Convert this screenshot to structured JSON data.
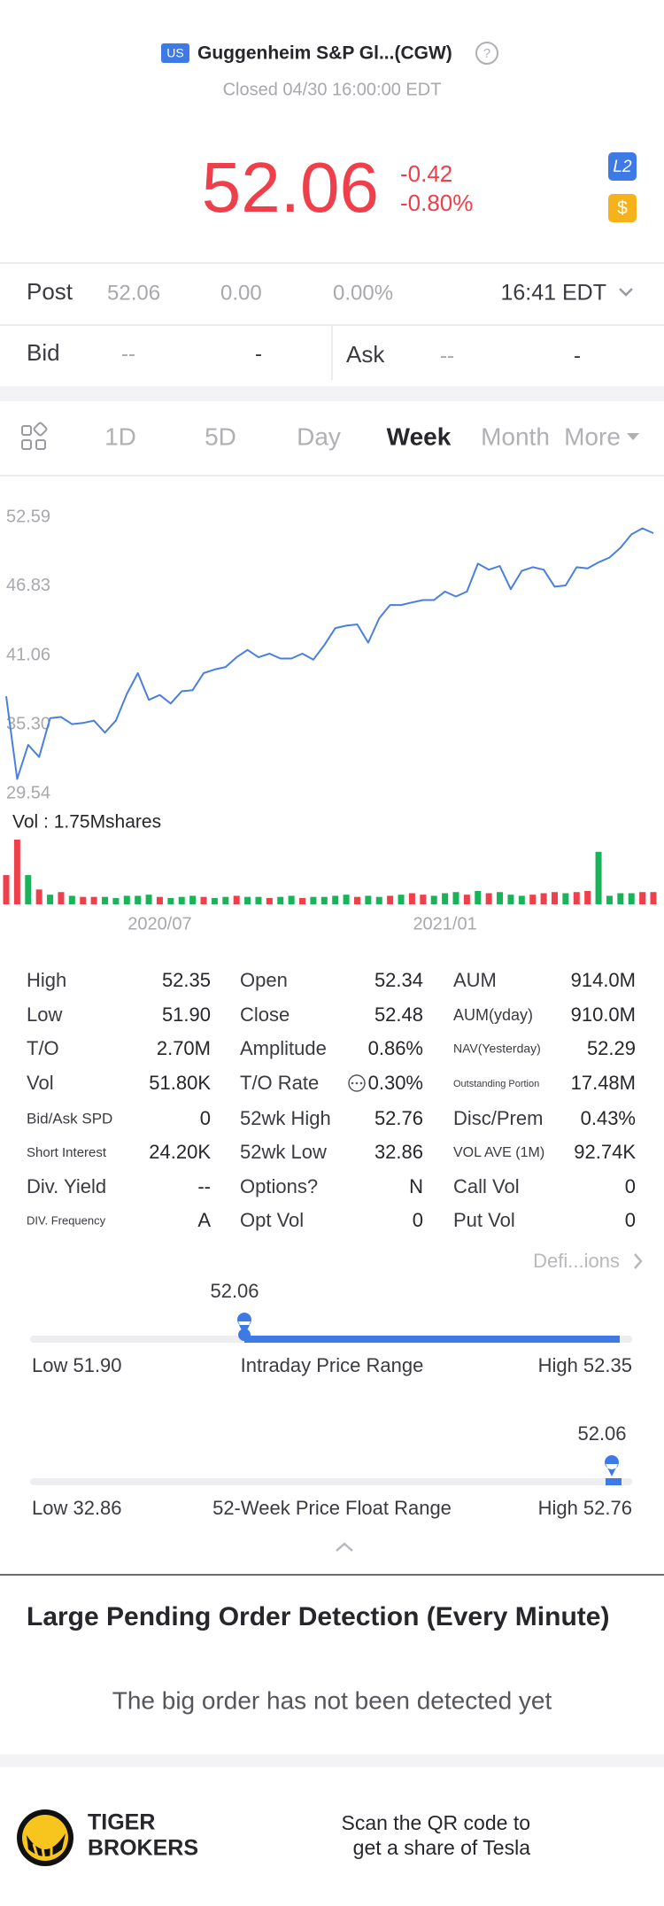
{
  "header": {
    "market": "US",
    "name": "Guggenheim S&P Gl...(CGW)",
    "status": "Closed 04/30 16:00:00 EDT"
  },
  "quote": {
    "price": "52.06",
    "change": "-0.42",
    "change_pct": "-0.80%",
    "level_badge": "L2",
    "currency_badge": "$"
  },
  "post": {
    "label": "Post",
    "price": "52.06",
    "change": "0.00",
    "change_pct": "0.00%",
    "time": "16:41 EDT"
  },
  "bid": {
    "label": "Bid",
    "price": "--",
    "size": "-"
  },
  "ask": {
    "label": "Ask",
    "price": "--",
    "size": "-"
  },
  "tabs": {
    "items": [
      "1D",
      "5D",
      "Day",
      "Week",
      "Month",
      "More"
    ],
    "active": 3
  },
  "chart_data": {
    "type": "line",
    "color": "#4a7fe0",
    "categories": [
      null,
      null,
      null,
      null,
      null,
      null,
      null,
      null,
      null,
      null,
      null,
      null,
      null,
      null,
      "2020/07",
      null,
      null,
      null,
      null,
      null,
      null,
      null,
      null,
      null,
      null,
      null,
      null,
      null,
      null,
      null,
      null,
      null,
      null,
      null,
      null,
      null,
      null,
      null,
      null,
      null,
      "2021/01",
      null,
      null,
      null,
      null,
      null,
      null,
      null,
      null,
      null,
      null,
      null,
      null,
      null,
      null,
      null,
      null,
      null,
      null,
      null
    ],
    "values": [
      37.66,
      30.76,
      33.6,
      32.59,
      35.83,
      35.93,
      35.33,
      35.43,
      35.63,
      34.62,
      35.63,
      37.86,
      39.59,
      37.36,
      37.76,
      37.05,
      38.07,
      38.17,
      39.59,
      39.89,
      40.1,
      40.91,
      41.52,
      40.91,
      41.21,
      40.81,
      40.81,
      41.21,
      40.71,
      41.92,
      43.34,
      43.55,
      43.65,
      42.13,
      44.16,
      45.27,
      45.27,
      45.48,
      45.68,
      45.68,
      46.39,
      45.98,
      46.39,
      48.72,
      48.22,
      48.52,
      46.59,
      48.11,
      48.42,
      48.22,
      46.8,
      46.9,
      48.42,
      48.32,
      48.83,
      49.23,
      50.04,
      51.16,
      51.67,
      51.26
    ],
    "ylim": [
      29.54,
      52.59
    ],
    "yticks": [
      52.59,
      46.83,
      41.06,
      {
        "value": 35.3,
        "label": "35.30"
      },
      29.54
    ],
    "volume": {
      "label": "Vol : 1.75Mshares",
      "ylim": [
        0,
        1.75
      ],
      "values": [
        0.79,
        1.75,
        0.79,
        0.4,
        0.26,
        0.33,
        0.23,
        0.2,
        0.2,
        0.2,
        0.17,
        0.23,
        0.23,
        0.26,
        0.2,
        0.17,
        0.2,
        0.23,
        0.2,
        0.17,
        0.2,
        0.23,
        0.2,
        0.2,
        0.17,
        0.2,
        0.23,
        0.17,
        0.2,
        0.2,
        0.23,
        0.26,
        0.2,
        0.23,
        0.2,
        0.23,
        0.26,
        0.3,
        0.26,
        0.23,
        0.3,
        0.33,
        0.26,
        0.36,
        0.3,
        0.33,
        0.26,
        0.23,
        0.26,
        0.3,
        0.33,
        0.3,
        0.33,
        0.36,
        1.42,
        0.23,
        0.3,
        0.3,
        0.33,
        0.33
      ],
      "colors": [
        "#ef3f4a",
        "#ef3f4a",
        "#19b35a",
        "#ef3f4a",
        "#19b35a",
        "#ef3f4a",
        "#19b35a",
        "#ef3f4a",
        "#ef3f4a",
        "#19b35a",
        "#19b35a",
        "#19b35a",
        "#19b35a",
        "#19b35a",
        "#ef3f4a",
        "#19b35a",
        "#19b35a",
        "#19b35a",
        "#ef3f4a",
        "#19b35a",
        "#19b35a",
        "#ef3f4a",
        "#19b35a",
        "#19b35a",
        "#ef3f4a",
        "#19b35a",
        "#19b35a",
        "#ef3f4a",
        "#19b35a",
        "#19b35a",
        "#19b35a",
        "#19b35a",
        "#ef3f4a",
        "#19b35a",
        "#19b35a",
        "#ef3f4a",
        "#19b35a",
        "#ef3f4a",
        "#ef3f4a",
        "#19b35a",
        "#19b35a",
        "#19b35a",
        "#ef3f4a",
        "#19b35a",
        "#ef3f4a",
        "#19b35a",
        "#19b35a",
        "#19b35a",
        "#ef3f4a",
        "#ef3f4a",
        "#ef3f4a",
        "#19b35a",
        "#ef3f4a",
        "#ef3f4a",
        "#19b35a",
        "#19b35a",
        "#19b35a",
        "#19b35a",
        "#ef3f4a",
        "#ef3f4a"
      ]
    }
  },
  "stats": {
    "rows": [
      [
        [
          "High",
          "52.35"
        ],
        [
          "Open",
          "52.34"
        ],
        [
          "AUM",
          "914.0M"
        ]
      ],
      [
        [
          "Low",
          "51.90"
        ],
        [
          "Close",
          "52.48"
        ],
        [
          "AUM(yday)",
          "910.0M"
        ]
      ],
      [
        [
          "T/O",
          "2.70M"
        ],
        [
          "Amplitude",
          "0.86%"
        ],
        [
          "NAV(Yesterday)",
          "52.29"
        ]
      ],
      [
        [
          "Vol",
          "51.80K"
        ],
        [
          "T/O Rate",
          "0.30%"
        ],
        [
          "Outstanding Portion",
          "17.48M"
        ]
      ],
      [
        [
          "Bid/Ask SPD",
          "0"
        ],
        [
          "52wk High",
          "52.76"
        ],
        [
          "Disc/Prem",
          "0.43%"
        ]
      ],
      [
        [
          "Short Interest",
          "24.20K"
        ],
        [
          "52wk Low",
          "32.86"
        ],
        [
          "VOL AVE (1M)",
          "92.74K"
        ]
      ],
      [
        [
          "Div. Yield",
          "--"
        ],
        [
          "Options?",
          "N"
        ],
        [
          "Call Vol",
          "0"
        ]
      ],
      [
        [
          "DIV. Frequency",
          "A"
        ],
        [
          "Opt Vol",
          "0"
        ],
        [
          "Put Vol",
          "0"
        ]
      ]
    ]
  },
  "definitions": "Defi...ions",
  "ranges": [
    {
      "current": "52.06",
      "low": "Low 51.90",
      "title": "Intraday Price Range",
      "high": "High 52.35"
    },
    {
      "current": "52.06",
      "low": "Low 32.86",
      "title": "52-Week Price Float Range",
      "high": "High 52.76"
    }
  ],
  "pending": {
    "title": "Large Pending Order Detection (Every Minute)",
    "message": "The big order has not been detected yet"
  },
  "footer": {
    "brand": [
      "TIGER",
      "BROKERS"
    ],
    "promo": [
      "Scan the QR code to",
      "get a share of Tesla"
    ]
  }
}
